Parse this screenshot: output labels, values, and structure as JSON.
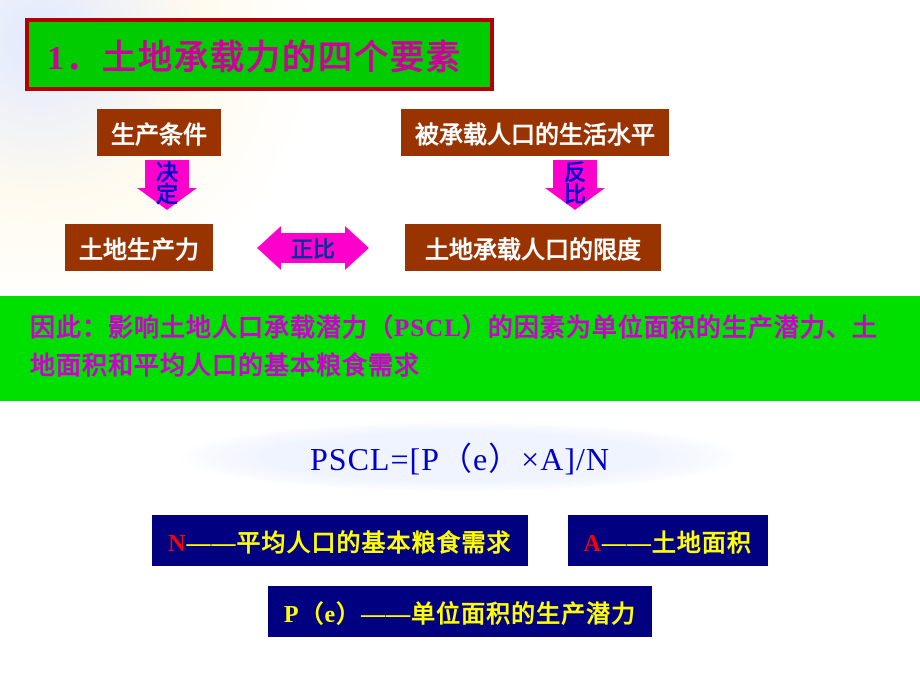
{
  "title": {
    "num": "1",
    "sep": "．",
    "text": "土地承载力的四个要素"
  },
  "boxes": {
    "b1": "生产条件",
    "b2": "被承载人口的生活水平",
    "b3": "土地生产力",
    "b4": "土地承载人口的限度"
  },
  "arrows": {
    "left_label_l1": "决",
    "left_label_l2": "定",
    "right_label_l1": "反",
    "right_label_l2": "比",
    "mid_label": "正比"
  },
  "green_band": "因此：影响土地人口承载潜力（PSCL）的因素为单位面积的生产潜力、土地面积和平均人口的基本粮食需求",
  "formula": "PSCL=[P（e）×A]/N",
  "defs": {
    "n_var": "N",
    "n_txt": "——平均人口的基本粮食需求",
    "a_var": "A",
    "a_txt": "——土地面积",
    "p_var": "P（e）",
    "p_txt": "——单位面积的生产潜力"
  },
  "colors": {
    "title_bg": "#00cc00",
    "title_border": "#b30000",
    "title_text": "#cc0099",
    "brown": "#993300",
    "arrow": "#ff00cc",
    "arrow_text": "#0000cc",
    "green_band_bg": "#00e000",
    "green_band_text": "#cc00cc",
    "formula_text": "#0000cc",
    "navy": "#000080",
    "var_red": "#ff0000",
    "var_yellow": "#ffff00"
  }
}
